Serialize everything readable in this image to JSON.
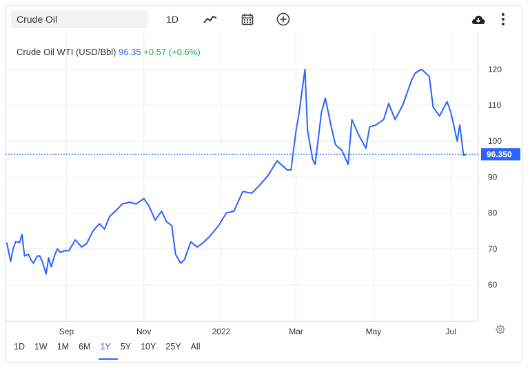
{
  "toolbar": {
    "search_value": "Crude Oil",
    "interval_label": "1D",
    "icons": [
      "line-style-icon",
      "calendar-icon",
      "plus-circle-icon",
      "download-cloud-icon",
      "kebab-menu-icon"
    ]
  },
  "legend": {
    "name": "Crude Oil WTI (USD/Bbl)",
    "price": "96.35",
    "change": "+0.57 (+0.6%)"
  },
  "price_label": "96.350",
  "periods": [
    "1D",
    "1W",
    "1M",
    "6M",
    "1Y",
    "5Y",
    "10Y",
    "25Y",
    "All"
  ],
  "active_period": "1Y",
  "colors": {
    "line": "#2962ff",
    "positive": "#22a744",
    "grid": "#eeeeee"
  },
  "chart_data": {
    "type": "line",
    "title": "",
    "xlabel": "",
    "ylabel": "",
    "x_ticks": [
      "Sep",
      "Nov",
      "2022",
      "Mar",
      "May",
      "Jul"
    ],
    "y_ticks": [
      60,
      70,
      80,
      90,
      100,
      110,
      120
    ],
    "ylim": [
      50,
      125
    ],
    "current_value": 96.35,
    "series": [
      {
        "name": "Crude Oil WTI",
        "x": [
          "2021-07-16",
          "2021-07-19",
          "2021-07-21",
          "2021-07-23",
          "2021-07-26",
          "2021-07-28",
          "2021-07-30",
          "2021-08-02",
          "2021-08-04",
          "2021-08-06",
          "2021-08-09",
          "2021-08-11",
          "2021-08-13",
          "2021-08-16",
          "2021-08-18",
          "2021-08-20",
          "2021-08-23",
          "2021-08-25",
          "2021-08-27",
          "2021-08-31",
          "2021-09-03",
          "2021-09-08",
          "2021-09-13",
          "2021-09-17",
          "2021-09-22",
          "2021-09-27",
          "2021-10-01",
          "2021-10-05",
          "2021-10-11",
          "2021-10-15",
          "2021-10-21",
          "2021-10-26",
          "2021-11-01",
          "2021-11-05",
          "2021-11-10",
          "2021-11-15",
          "2021-11-19",
          "2021-11-23",
          "2021-11-26",
          "2021-11-30",
          "2021-12-03",
          "2021-12-08",
          "2021-12-13",
          "2021-12-17",
          "2021-12-23",
          "2021-12-30",
          "2022-01-05",
          "2022-01-11",
          "2022-01-18",
          "2022-01-25",
          "2022-02-01",
          "2022-02-07",
          "2022-02-14",
          "2022-02-22",
          "2022-02-25",
          "2022-03-01",
          "2022-03-03",
          "2022-03-08",
          "2022-03-10",
          "2022-03-14",
          "2022-03-16",
          "2022-03-21",
          "2022-03-24",
          "2022-03-29",
          "2022-04-01",
          "2022-04-06",
          "2022-04-11",
          "2022-04-14",
          "2022-04-19",
          "2022-04-25",
          "2022-04-28",
          "2022-05-03",
          "2022-05-09",
          "2022-05-13",
          "2022-05-18",
          "2022-05-24",
          "2022-05-31",
          "2022-06-03",
          "2022-06-08",
          "2022-06-14",
          "2022-06-17",
          "2022-06-22",
          "2022-06-28",
          "2022-07-01",
          "2022-07-06",
          "2022-07-08",
          "2022-07-11",
          "2022-07-13"
        ],
        "values": [
          71.8,
          66.5,
          70.0,
          72.0,
          71.8,
          74.0,
          68.0,
          68.5,
          67.0,
          66.0,
          68.0,
          68.0,
          66.5,
          63.0,
          67.5,
          65.0,
          68.5,
          70.0,
          69.0,
          69.5,
          69.5,
          72.5,
          70.5,
          71.5,
          75.0,
          77.0,
          75.5,
          79.0,
          81.0,
          82.5,
          83.0,
          82.5,
          84.0,
          82.0,
          78.0,
          80.5,
          77.5,
          76.5,
          68.5,
          66.0,
          67.0,
          72.0,
          70.5,
          71.5,
          73.5,
          76.5,
          80.0,
          80.5,
          86.0,
          85.5,
          88.0,
          90.5,
          94.5,
          92.0,
          92.0,
          103.0,
          107.0,
          120.0,
          103.0,
          95.0,
          93.5,
          108.0,
          112.0,
          103.5,
          99.0,
          97.5,
          93.5,
          106.0,
          102.0,
          98.0,
          104.0,
          104.5,
          106.0,
          110.5,
          106.0,
          110.0,
          117.0,
          119.0,
          120.0,
          118.0,
          109.5,
          107.0,
          111.0,
          108.0,
          100.0,
          104.5,
          96.0,
          96.35
        ]
      }
    ]
  }
}
